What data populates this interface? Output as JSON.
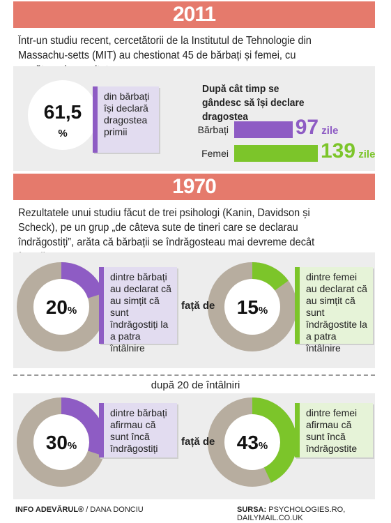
{
  "section2011": {
    "year": "2011",
    "intro": "Într-un studiu recent, cercetătorii de la Institutul de Tehnologie din Massachu-setts (MIT) au chestionat 45 de bărbați și femei, cu următoarele rezultate:",
    "stat_value": "61,5",
    "stat_unit": "%",
    "stat_text": "din bărbați își declară dragostea primii",
    "bar_title": "După cât timp se gândesc să își declare dragostea"
  },
  "section1970": {
    "year": "1970",
    "intro": "Rezultatele unui studiu făcut de trei psihologi (Kanin, Davidson și Scheck), pe un grup „de câteva sute de tineri care se declarau îndrăgostiți”, arăta că bărbații se îndrăgosteau mai devreme decât femeile.",
    "compare_label": "față de",
    "compare_label_2": "față de",
    "after_title": "după 20 de întâlniri",
    "men_text_1": "dintre bărbați au declarat că au simțit că sunt îndrăgostiți la a patra întâlnire",
    "women_text_1": "dintre femei au declarat că au simțit că sunt îndrăgostite la a patra întâlnire",
    "men_text_2": "dintre bărbați afirmau că sunt încă îndrăgostiți",
    "women_text_2": "dintre femei afirmau că sunt încă îndrăgostite"
  },
  "footer": {
    "left_brand": "INFO ADEVĂRUL®",
    "left_author": " / DANA DONCIU",
    "source_label": "SURSA:",
    "source_text": " PSYCHOLOGIES.RO, DAILYMAIL.CO.UK"
  },
  "colors": {
    "banner": "#e57a6c",
    "men": "#8e5cc4",
    "women": "#7cc52a",
    "ring": "#b7ad9f"
  },
  "chart_data": [
    {
      "type": "bar",
      "title": "După cât timp se gândesc să își declare dragostea",
      "categories": [
        "Bărbați",
        "Femei"
      ],
      "values": [
        97,
        139
      ],
      "value_labels": [
        "97",
        "139"
      ],
      "unit": "zile",
      "colors": [
        "#8e5cc4",
        "#7cc52a"
      ]
    },
    {
      "type": "pie",
      "variant": "donut",
      "values": [
        20,
        15,
        30,
        43
      ],
      "labels": [
        "20",
        "15",
        "30",
        "43"
      ],
      "unit": "%",
      "colors": [
        "#8e5cc4",
        "#7cc52a",
        "#8e5cc4",
        "#7cc52a"
      ]
    }
  ]
}
